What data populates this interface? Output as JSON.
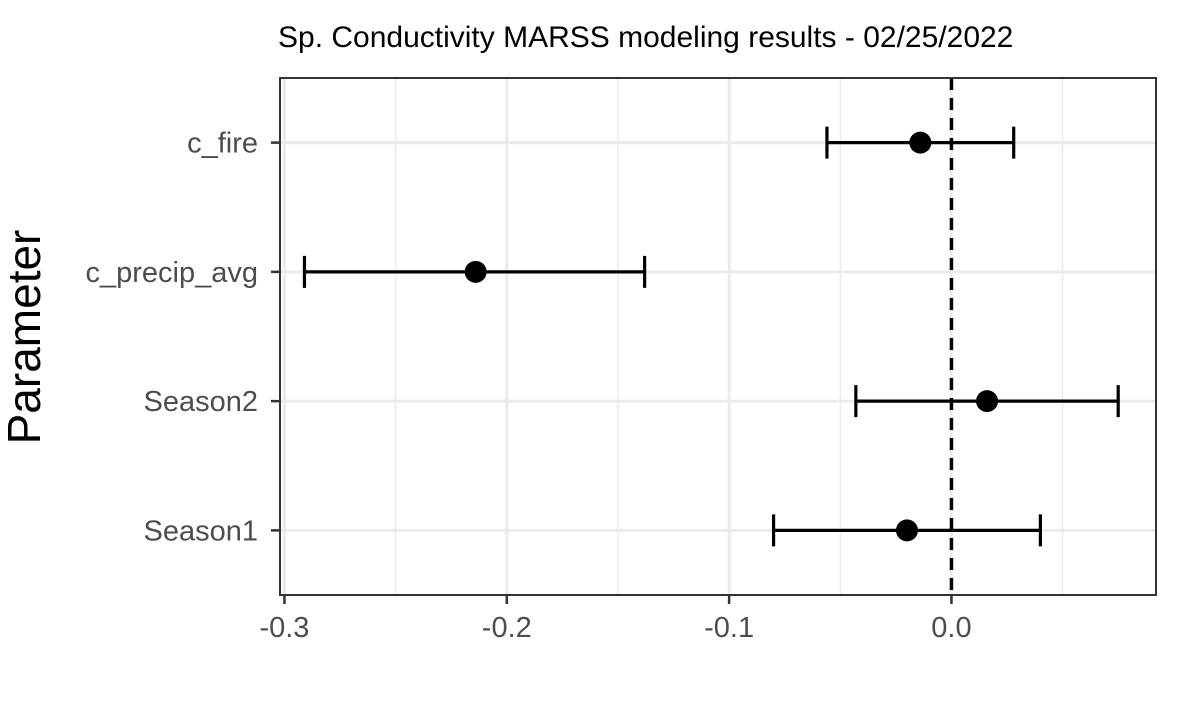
{
  "chart_data": {
    "type": "scatter",
    "title": "Sp. Conductivity MARSS modeling results - 02/25/2022",
    "xlabel": "",
    "ylabel": "Parameter",
    "xlim": [
      -0.302,
      0.092
    ],
    "x_ticks": [
      -0.3,
      -0.2,
      -0.1,
      0.0
    ],
    "x_tick_labels": [
      "-0.3",
      "-0.2",
      "-0.1",
      "0.0"
    ],
    "x_minor_ticks": [
      -0.25,
      -0.15,
      -0.05,
      0.05
    ],
    "categories": [
      "c_fire",
      "c_precip_avg",
      "Season2",
      "Season1"
    ],
    "series": [
      {
        "estimate": [
          -0.014,
          -0.214,
          0.016,
          -0.02
        ],
        "lower": [
          -0.056,
          -0.291,
          -0.043,
          -0.08
        ],
        "upper": [
          0.028,
          -0.138,
          0.075,
          0.04
        ]
      }
    ],
    "reference_line": {
      "x": 0.0,
      "style": "dashed"
    },
    "grid": true,
    "legend": "none",
    "colors": {
      "point": "#000000",
      "errorbar": "#000000",
      "grid": "#ebebeb",
      "panel_border": "#333333",
      "tick_label": "#4d4d4d"
    }
  }
}
